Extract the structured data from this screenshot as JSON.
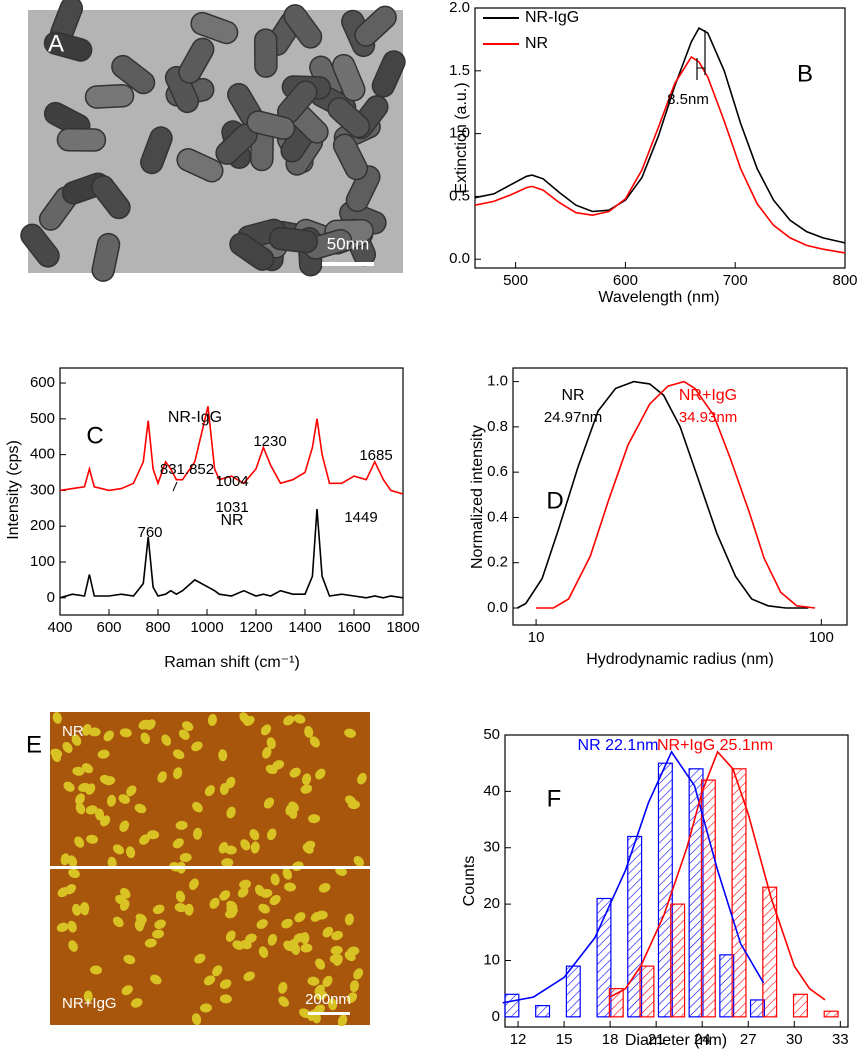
{
  "chart_data": [
    {
      "type": "line",
      "xlabel": "Wavelength (nm)",
      "ylabel": "Extinction (a.u.)",
      "legend": "upper left",
      "x": [
        463,
        480,
        495,
        510,
        515,
        525,
        540,
        555,
        570,
        585,
        600,
        615,
        630,
        645,
        660,
        667,
        675,
        690,
        705,
        720,
        735,
        750,
        765,
        780,
        800
      ],
      "series": [
        {
          "name": "NR-IgG",
          "color": "#000000",
          "values": [
            0.49,
            0.52,
            0.59,
            0.66,
            0.67,
            0.64,
            0.53,
            0.43,
            0.38,
            0.39,
            0.47,
            0.65,
            0.98,
            1.38,
            1.73,
            1.84,
            1.8,
            1.5,
            1.08,
            0.72,
            0.47,
            0.31,
            0.22,
            0.17,
            0.13
          ]
        },
        {
          "name": "NR",
          "color": "#ff0000",
          "values": [
            0.43,
            0.46,
            0.51,
            0.57,
            0.58,
            0.55,
            0.45,
            0.37,
            0.35,
            0.38,
            0.48,
            0.71,
            1.05,
            1.4,
            1.61,
            1.57,
            1.45,
            1.1,
            0.72,
            0.44,
            0.27,
            0.17,
            0.11,
            0.08,
            0.05
          ]
        }
      ],
      "xlim": [
        463,
        800
      ],
      "ylim": [
        -0.07,
        2.0
      ],
      "xticks": [
        500,
        600,
        700,
        800
      ],
      "yticks": [
        {
          "value": 0,
          "label": "0.0"
        },
        {
          "value": 0.5,
          "label": "0.5"
        },
        {
          "value": 1,
          "label": "1.0"
        },
        {
          "value": 1.5,
          "label": "1.5"
        },
        {
          "value": 2,
          "label": "2.0"
        }
      ],
      "annotations": [
        {
          "text": "8.5nm",
          "color": "#000000"
        },
        {
          "text": "B",
          "color": "#000000"
        }
      ]
    },
    {
      "type": "line",
      "xlabel": "Raman shift (cm⁻¹)",
      "ylabel": "Intensity (cps)",
      "x": [
        400,
        450,
        500,
        520,
        540,
        600,
        650,
        700,
        740,
        760,
        780,
        800,
        831,
        852,
        875,
        900,
        950,
        1004,
        1031,
        1050,
        1100,
        1150,
        1200,
        1230,
        1260,
        1300,
        1350,
        1400,
        1430,
        1449,
        1470,
        1500,
        1550,
        1600,
        1650,
        1685,
        1720,
        1750,
        1800
      ],
      "series": [
        {
          "name": "NR-IgG",
          "color": "#ff0000",
          "values": [
            300,
            305,
            310,
            360,
            310,
            300,
            305,
            320,
            380,
            495,
            360,
            320,
            380,
            360,
            330,
            330,
            380,
            535,
            360,
            330,
            340,
            320,
            360,
            420,
            370,
            320,
            330,
            350,
            420,
            500,
            400,
            320,
            320,
            340,
            330,
            380,
            330,
            300,
            290
          ]
        },
        {
          "name": "NR",
          "color": "#000000",
          "values": [
            0,
            10,
            5,
            65,
            5,
            5,
            10,
            5,
            40,
            170,
            30,
            5,
            10,
            20,
            10,
            20,
            50,
            30,
            20,
            10,
            5,
            20,
            5,
            10,
            5,
            20,
            10,
            10,
            60,
            248,
            60,
            5,
            10,
            5,
            0,
            5,
            0,
            5,
            0
          ]
        }
      ],
      "xlim": [
        400,
        1800
      ],
      "ylim": [
        -48,
        642
      ],
      "xticks": [
        400,
        600,
        800,
        1000,
        1200,
        1400,
        1600,
        1800
      ],
      "yticks": [
        0,
        100,
        200,
        300,
        400,
        500,
        600
      ],
      "annotations": [
        {
          "text": "C",
          "color": "#000000"
        },
        {
          "text": "831.852",
          "color": "#000000"
        },
        {
          "text": "1004",
          "color": "#000000"
        },
        {
          "text": "1031",
          "color": "#000000"
        },
        {
          "text": "1230",
          "color": "#000000"
        },
        {
          "text": "1685",
          "color": "#000000"
        },
        {
          "text": "760",
          "color": "#000000"
        },
        {
          "text": "1449",
          "color": "#000000"
        }
      ]
    },
    {
      "type": "line",
      "xlabel": "Hydrodynamic radius (nm)",
      "ylabel": "Normalized intensity",
      "xscale": "log",
      "series": [
        {
          "name": "NR",
          "color": "#000000",
          "x": [
            8.6,
            9.2,
            10.5,
            12,
            14,
            16.5,
            19,
            22,
            25,
            28,
            32,
            37,
            43,
            50,
            57,
            65,
            75,
            90
          ],
          "values": [
            0,
            0.02,
            0.13,
            0.35,
            0.62,
            0.87,
            0.97,
            1.0,
            0.99,
            0.94,
            0.8,
            0.57,
            0.33,
            0.14,
            0.04,
            0.01,
            0,
            0
          ]
        },
        {
          "name": "NR+IgG",
          "color": "#ff0000",
          "x": [
            10,
            11.5,
            13,
            15.5,
            18,
            21,
            25,
            29,
            33,
            36,
            42,
            48,
            56,
            63,
            72,
            82,
            95
          ],
          "values": [
            0,
            0,
            0.04,
            0.23,
            0.48,
            0.72,
            0.9,
            0.98,
            1.0,
            0.97,
            0.85,
            0.66,
            0.42,
            0.22,
            0.07,
            0.01,
            0
          ]
        }
      ],
      "xlim": [
        8.3,
        123
      ],
      "ylim": [
        -0.075,
        1.06
      ],
      "xticks": [
        10,
        100
      ],
      "yticks": [
        {
          "value": 0,
          "label": "0.0"
        },
        {
          "value": 0.2,
          "label": "0.2"
        },
        {
          "value": 0.4,
          "label": "0.4"
        },
        {
          "value": 0.6,
          "label": "0.6"
        },
        {
          "value": 0.8,
          "label": "0.8"
        },
        {
          "value": 1,
          "label": "1.0"
        }
      ],
      "annotations": [
        {
          "text": "24.97nm",
          "color": "#000000"
        },
        {
          "text": "34.93nm",
          "color": "#ff0000"
        },
        {
          "text": "D",
          "color": "#000000"
        }
      ]
    },
    {
      "type": "histogram",
      "xlabel": "Diameter (nm)",
      "ylabel": "Counts",
      "series": [
        {
          "kind": "bar",
          "color": "#0000ff",
          "x": [
            11.6,
            13.6,
            15.6,
            17.6,
            19.6,
            21.6,
            23.6,
            25.6,
            27.6
          ],
          "values": [
            4,
            2,
            9,
            21,
            32,
            45,
            44,
            11,
            3
          ]
        },
        {
          "kind": "bar",
          "color": "#ff0000",
          "x": [
            18.4,
            20.4,
            22.4,
            24.4,
            26.4,
            28.4,
            30.4,
            32.4
          ],
          "values": [
            5,
            9,
            20,
            42,
            44,
            23,
            4,
            1
          ]
        },
        {
          "kind": "line",
          "name": "NR 22.1nm",
          "color": "#0000ff",
          "x": [
            11,
            13,
            15,
            17,
            19,
            20.5,
            22,
            23.5,
            25,
            26.5,
            28
          ],
          "values": [
            2.5,
            3.5,
            7,
            14,
            26,
            38,
            47,
            41,
            26,
            13,
            6
          ]
        },
        {
          "kind": "line",
          "name": "NR+IgG 25.1nm",
          "color": "#ff0000",
          "x": [
            18,
            19,
            20,
            21.5,
            23,
            24,
            25,
            26,
            27,
            28.5,
            30,
            31,
            32
          ],
          "values": [
            3.5,
            5,
            9,
            18,
            30,
            40,
            47,
            44,
            36,
            21,
            9,
            5,
            3
          ]
        }
      ],
      "xlim": [
        11.15,
        33.5
      ],
      "ylim": [
        -1.8,
        50
      ],
      "xticks": [
        12,
        15,
        18,
        21,
        24,
        27,
        30,
        33
      ],
      "yticks": [
        0,
        10,
        20,
        30,
        40,
        50
      ],
      "annotations": [
        {
          "text": "F",
          "color": "#000000"
        }
      ]
    }
  ],
  "images": [
    {
      "label": "A",
      "scale_bar": "50nm"
    },
    {
      "label": "E",
      "top_label": "NR",
      "bottom_label": "NR+IgG",
      "scale_bar": "200nm"
    }
  ]
}
